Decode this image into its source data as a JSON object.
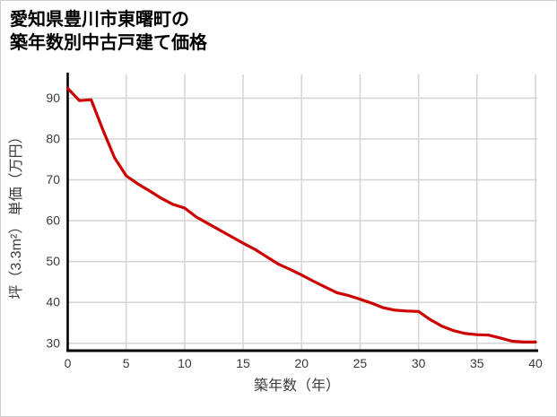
{
  "title": {
    "line1": "愛知県豊川市東曙町の",
    "line2": "築年数別中古戸建て価格"
  },
  "chart_data": {
    "type": "line",
    "title": "愛知県豊川市東曙町の築年数別中古戸建て価格",
    "xlabel": "築年数（年）",
    "ylabel": "坪（3.3m²） 単価（万円）",
    "x": [
      0,
      1,
      2,
      3,
      4,
      5,
      6,
      7,
      8,
      9,
      10,
      11,
      12,
      13,
      14,
      15,
      16,
      17,
      18,
      19,
      20,
      21,
      22,
      23,
      24,
      25,
      26,
      27,
      28,
      29,
      30,
      31,
      32,
      33,
      34,
      35,
      36,
      37,
      38,
      39,
      40
    ],
    "values": [
      92.4,
      89.4,
      89.6,
      82.3,
      75.4,
      71.0,
      69.0,
      67.3,
      65.5,
      64.0,
      63.1,
      60.9,
      59.3,
      57.7,
      56.1,
      54.5,
      53.0,
      51.2,
      49.4,
      48.1,
      46.7,
      45.2,
      43.8,
      42.4,
      41.7,
      40.8,
      39.8,
      38.7,
      38.1,
      37.9,
      37.8,
      35.8,
      34.2,
      33.1,
      32.4,
      32.1,
      32.0,
      31.3,
      30.5,
      30.3,
      30.3
    ],
    "x_ticks": [
      0,
      5,
      10,
      15,
      20,
      25,
      30,
      35,
      40
    ],
    "y_ticks": [
      30,
      40,
      50,
      60,
      70,
      80,
      90
    ],
    "xlim": [
      0,
      40
    ],
    "ylim": [
      28.2,
      95.8
    ],
    "grid": true,
    "legend_position": "none"
  },
  "colors": {
    "line": "#cc0000",
    "grid": "#d6d6d6",
    "axis": "#000000",
    "tick_text": "#3b3b3b",
    "label_text": "#3b3b3b",
    "border": "#cfcfcf",
    "background": "#ffffff"
  }
}
